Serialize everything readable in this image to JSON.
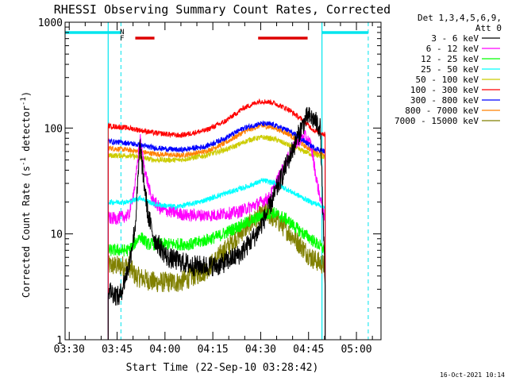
{
  "chart_data": {
    "type": "line",
    "title": "RHESSI Observing Summary Count Rates, Corrected",
    "xlabel": "Start Time (22-Sep-10 03:28:42)",
    "ylabel": "Corrected Count Rate (s^-1 detector^-1)",
    "ylabel_main": "Corrected Count Rate (s",
    "ylabel_exp1": "-1",
    "ylabel_mid": " detector",
    "ylabel_exp2": "-1",
    "ylabel_end": ")",
    "yscale": "log",
    "xlim_min": [
      0,
      99
    ],
    "ylim": [
      1,
      1000
    ],
    "x_ticks": [
      {
        "min": 1.3,
        "label": "03:30"
      },
      {
        "min": 16.3,
        "label": "03:45"
      },
      {
        "min": 31.3,
        "label": "04:00"
      },
      {
        "min": 46.3,
        "label": "04:15"
      },
      {
        "min": 61.3,
        "label": "04:30"
      },
      {
        "min": 76.3,
        "label": "04:45"
      },
      {
        "min": 91.3,
        "label": "05:00"
      }
    ],
    "y_ticks": [
      {
        "v": 1,
        "label": "1"
      },
      {
        "v": 10,
        "label": "10"
      },
      {
        "v": 100,
        "label": "100"
      },
      {
        "v": 1000,
        "label": "1000"
      }
    ],
    "legend_header": [
      "Det 1,3,4,5,6,9,",
      "Att 0"
    ],
    "legend_placement": "right",
    "series": [
      {
        "name": "3 - 6 keV",
        "color": "#000000",
        "start": 13.5,
        "end": 81.5,
        "pts": [
          [
            13.5,
            3
          ],
          [
            17,
            2.5
          ],
          [
            20,
            5
          ],
          [
            22,
            12
          ],
          [
            23.5,
            70
          ],
          [
            24.5,
            35
          ],
          [
            26,
            15
          ],
          [
            28,
            9
          ],
          [
            32,
            6
          ],
          [
            40,
            5
          ],
          [
            48,
            5
          ],
          [
            55,
            6.5
          ],
          [
            60,
            10
          ],
          [
            63,
            15
          ],
          [
            66,
            25
          ],
          [
            70,
            50
          ],
          [
            74,
            100
          ],
          [
            76,
            130
          ],
          [
            78,
            120
          ],
          [
            80,
            100
          ],
          [
            81.5,
            3
          ]
        ]
      },
      {
        "name": "6 - 12 keV",
        "color": "#ff00ff",
        "start": 13.5,
        "end": 81.5,
        "pts": [
          [
            13.5,
            14
          ],
          [
            16,
            14
          ],
          [
            20,
            15
          ],
          [
            22,
            30
          ],
          [
            23.5,
            80
          ],
          [
            25,
            40
          ],
          [
            27,
            22
          ],
          [
            30,
            17
          ],
          [
            38,
            15
          ],
          [
            46,
            15
          ],
          [
            54,
            16
          ],
          [
            60,
            19
          ],
          [
            64,
            22
          ],
          [
            68,
            40
          ],
          [
            72,
            70
          ],
          [
            75,
            85
          ],
          [
            77,
            70
          ],
          [
            79,
            30
          ],
          [
            81.5,
            13
          ]
        ]
      },
      {
        "name": "12 - 25 keV",
        "color": "#00ff00",
        "start": 13.5,
        "end": 81.5,
        "pts": [
          [
            13.5,
            7
          ],
          [
            20,
            7
          ],
          [
            23.5,
            9.5
          ],
          [
            26,
            8
          ],
          [
            32,
            8
          ],
          [
            40,
            8
          ],
          [
            48,
            9.5
          ],
          [
            55,
            12
          ],
          [
            61,
            14.5
          ],
          [
            65,
            16
          ],
          [
            69,
            14
          ],
          [
            73,
            11
          ],
          [
            77,
            9
          ],
          [
            81.5,
            7
          ]
        ]
      },
      {
        "name": "25 - 50 keV",
        "color": "#00ffff",
        "start": 13.5,
        "end": 81.5,
        "pts": [
          [
            13.5,
            20
          ],
          [
            20,
            20
          ],
          [
            23.5,
            22
          ],
          [
            28,
            19
          ],
          [
            35,
            18
          ],
          [
            42,
            20
          ],
          [
            50,
            24
          ],
          [
            57,
            28
          ],
          [
            62,
            32
          ],
          [
            66,
            30
          ],
          [
            72,
            24
          ],
          [
            77,
            20
          ],
          [
            81.5,
            18
          ]
        ]
      },
      {
        "name": "50 - 100 keV",
        "color": "#cccc00",
        "start": 13.5,
        "end": 81.5,
        "pts": [
          [
            13.5,
            55
          ],
          [
            20,
            55
          ],
          [
            28,
            50
          ],
          [
            36,
            50
          ],
          [
            44,
            55
          ],
          [
            52,
            65
          ],
          [
            58,
            78
          ],
          [
            62,
            82
          ],
          [
            66,
            78
          ],
          [
            72,
            65
          ],
          [
            77,
            57
          ],
          [
            81.5,
            53
          ]
        ]
      },
      {
        "name": "100 - 300 keV",
        "color": "#ff0000",
        "start": 13.5,
        "end": 81.5,
        "pts": [
          [
            13.5,
            105
          ],
          [
            20,
            100
          ],
          [
            28,
            90
          ],
          [
            36,
            85
          ],
          [
            44,
            95
          ],
          [
            50,
            115
          ],
          [
            56,
            155
          ],
          [
            61,
            180
          ],
          [
            65,
            175
          ],
          [
            70,
            150
          ],
          [
            75,
            115
          ],
          [
            78,
            95
          ],
          [
            81.5,
            87
          ]
        ]
      },
      {
        "name": "300 - 800 keV",
        "color": "#0000ff",
        "start": 13.5,
        "end": 81.5,
        "pts": [
          [
            13.5,
            75
          ],
          [
            20,
            72
          ],
          [
            28,
            65
          ],
          [
            36,
            62
          ],
          [
            44,
            67
          ],
          [
            50,
            80
          ],
          [
            56,
            100
          ],
          [
            61,
            110
          ],
          [
            65,
            108
          ],
          [
            70,
            95
          ],
          [
            75,
            75
          ],
          [
            78,
            65
          ],
          [
            81.5,
            60
          ]
        ]
      },
      {
        "name": "800 - 7000 keV",
        "color": "#ff8000",
        "start": 13.5,
        "end": 81.5,
        "pts": [
          [
            13.5,
            65
          ],
          [
            20,
            62
          ],
          [
            28,
            57
          ],
          [
            36,
            55
          ],
          [
            44,
            60
          ],
          [
            50,
            72
          ],
          [
            56,
            92
          ],
          [
            61,
            105
          ],
          [
            65,
            102
          ],
          [
            70,
            88
          ],
          [
            75,
            68
          ],
          [
            78,
            60
          ],
          [
            81.5,
            55
          ]
        ]
      },
      {
        "name": "7000 - 15000 keV",
        "color": "#808000",
        "start": 13.5,
        "end": 81.5,
        "pts": [
          [
            13.5,
            5
          ],
          [
            20,
            5
          ],
          [
            22,
            4
          ],
          [
            28,
            3.5
          ],
          [
            36,
            3.5
          ],
          [
            44,
            4.5
          ],
          [
            50,
            7
          ],
          [
            56,
            11
          ],
          [
            60,
            14
          ],
          [
            63,
            16
          ],
          [
            67,
            13
          ],
          [
            72,
            9
          ],
          [
            77,
            6
          ],
          [
            81.5,
            5
          ]
        ]
      }
    ],
    "annotations": {
      "n_label": "N",
      "f_label": "F",
      "night_segments": [
        [
          0,
          17.5
        ],
        [
          80.5,
          95
        ]
      ],
      "night_dashed": [
        17.5,
        95
      ],
      "night_solid": [
        13.5,
        80.5
      ],
      "flare_segments": [
        [
          22,
          28
        ],
        [
          60.5,
          76
        ]
      ],
      "night_color": "#00e5ee",
      "flare_color": "#dd0000"
    },
    "timestamp": "16-Oct-2021 10:14"
  }
}
